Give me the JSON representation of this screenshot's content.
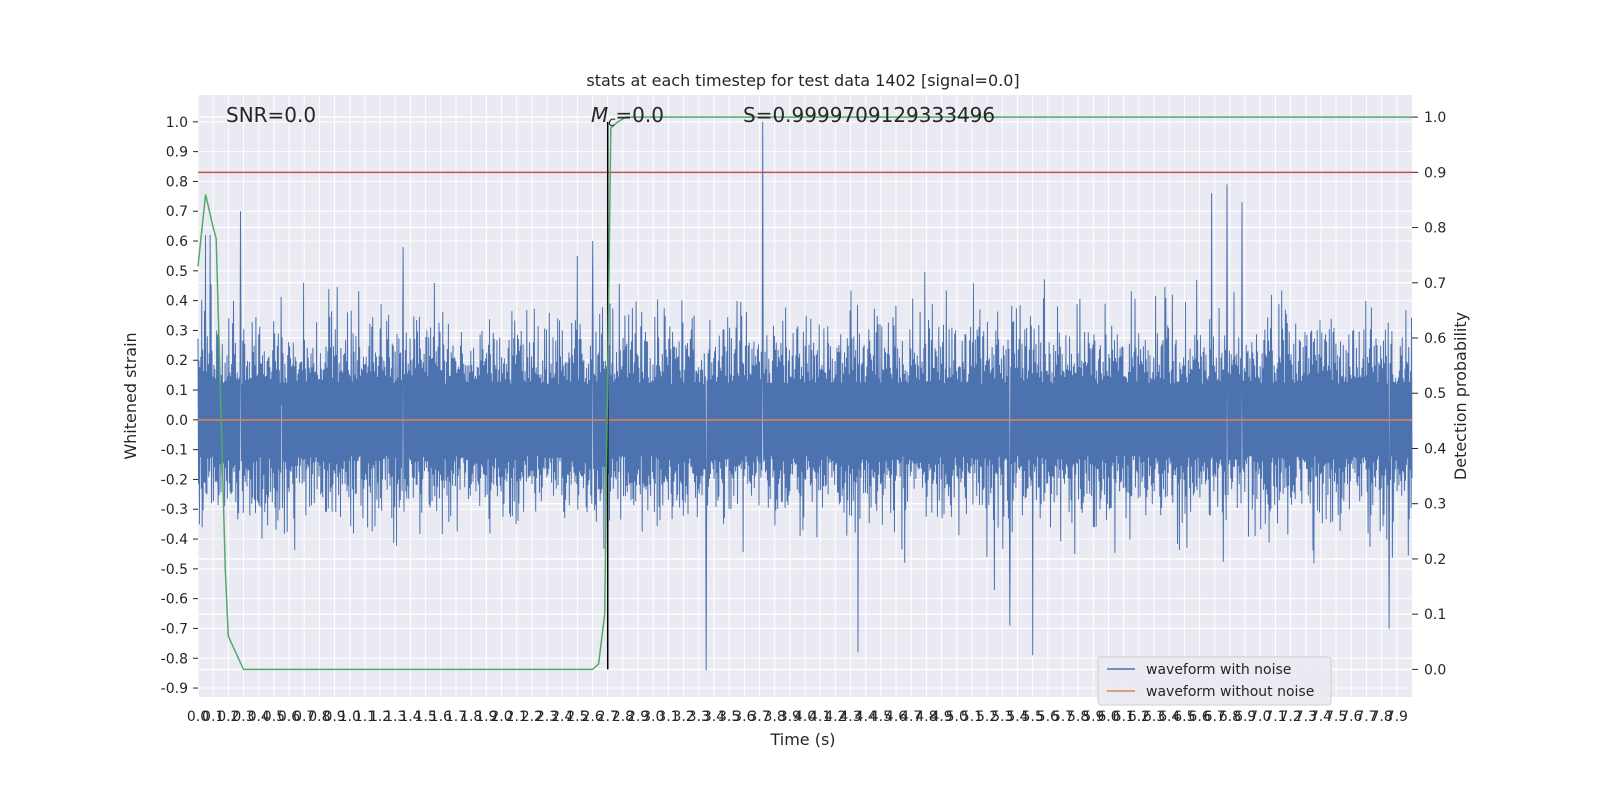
{
  "chart_data": {
    "type": "line",
    "title": "stats at each timestep for test data 1402 [signal=0.0]",
    "xlabel": "Time (s)",
    "ylabel": "Whitened strain",
    "ylabel_right": "Detection probability",
    "xlim": [
      0.0,
      8.0
    ],
    "ylim": [
      -0.93,
      1.09
    ],
    "ylim_right": [
      -0.05,
      1.04
    ],
    "x_ticks": [
      "0.0",
      "0.1",
      "0.2",
      "0.3",
      "0.4",
      "0.5",
      "0.6",
      "0.7",
      "0.8",
      "0.9",
      "1.0",
      "1.1",
      "1.2",
      "1.3",
      "1.4",
      "1.5",
      "1.6",
      "1.7",
      "1.8",
      "1.9",
      "2.0",
      "2.1",
      "2.2",
      "2.3",
      "2.4",
      "2.5",
      "2.6",
      "2.7",
      "2.8",
      "2.9",
      "3.0",
      "3.1",
      "3.2",
      "3.3",
      "3.4",
      "3.5",
      "3.6",
      "3.7",
      "3.8",
      "3.9",
      "4.0",
      "4.1",
      "4.2",
      "4.3",
      "4.4",
      "4.5",
      "4.6",
      "4.7",
      "4.8",
      "4.9",
      "5.0",
      "5.1",
      "5.2",
      "5.3",
      "5.4",
      "5.5",
      "5.6",
      "5.7",
      "5.8",
      "5.9",
      "6.0",
      "6.1",
      "6.2",
      "6.3",
      "6.4",
      "6.5",
      "6.6",
      "6.7",
      "6.8",
      "6.9",
      "7.0",
      "7.1",
      "7.2",
      "7.3",
      "7.4",
      "7.5",
      "7.6",
      "7.7",
      "7.8",
      "7.9"
    ],
    "y_ticks": [
      "-0.9",
      "-0.8",
      "-0.7",
      "-0.6",
      "-0.5",
      "-0.4",
      "-0.3",
      "-0.2",
      "-0.1",
      "0.0",
      "0.1",
      "0.2",
      "0.3",
      "0.4",
      "0.5",
      "0.6",
      "0.7",
      "0.8",
      "0.9",
      "1.0"
    ],
    "y_ticks_right": [
      "0.0",
      "0.1",
      "0.2",
      "0.3",
      "0.4",
      "0.5",
      "0.6",
      "0.7",
      "0.8",
      "0.9",
      "1.0"
    ],
    "annotations": {
      "snr": "SNR=0.0",
      "mc": "=0.0",
      "mc_symbol": "M",
      "mc_sub": "c",
      "s": "S=0.9999709129333496"
    },
    "series": [
      {
        "name": "waveform with noise",
        "color": "#4c72b0",
        "noise_sigma": 0.12,
        "spikes": [
          [
            0.05,
            0.62
          ],
          [
            0.08,
            0.62
          ],
          [
            0.28,
            0.7
          ],
          [
            0.55,
            0.05
          ],
          [
            1.35,
            0.58
          ],
          [
            2.5,
            0.55
          ],
          [
            2.6,
            0.6
          ],
          [
            3.72,
            1.0
          ],
          [
            6.68,
            0.76
          ],
          [
            6.78,
            0.79
          ],
          [
            6.88,
            0.73
          ],
          [
            3.35,
            -0.84
          ],
          [
            4.35,
            -0.78
          ],
          [
            5.5,
            -0.79
          ],
          [
            5.35,
            -0.69
          ],
          [
            7.85,
            -0.7
          ]
        ]
      },
      {
        "name": "waveform without noise",
        "color": "#dd8452",
        "x": [
          0.0,
          8.0
        ],
        "y": [
          0.0,
          0.0
        ]
      },
      {
        "color": "#55a868",
        "axis": "right",
        "x": [
          0.0,
          0.05,
          0.1,
          0.12,
          0.18,
          0.2,
          0.25,
          0.3,
          0.5,
          1.0,
          1.5,
          2.0,
          2.4,
          2.6,
          2.64,
          2.68,
          2.72,
          2.76,
          2.82,
          3.0,
          4.0,
          5.0,
          6.0,
          7.0,
          8.0
        ],
        "y": [
          0.73,
          0.86,
          0.8,
          0.78,
          0.18,
          0.06,
          0.03,
          0.0,
          0.0,
          0.0,
          0.0,
          0.0,
          0.0,
          0.0,
          0.01,
          0.1,
          0.98,
          0.99,
          1.0,
          1.0,
          1.0,
          1.0,
          1.0,
          1.0,
          1.0
        ]
      }
    ],
    "threshold_line": {
      "color": "#c44e52",
      "value_right": 0.9
    },
    "vertical_marker": {
      "x": 2.7,
      "color": "#000000"
    },
    "legend": {
      "placement": "lower-right",
      "entries": [
        {
          "label": "waveform with noise",
          "color": "#4c72b0"
        },
        {
          "label": "waveform without noise",
          "color": "#dd8452"
        }
      ]
    },
    "grid": true,
    "colors": {
      "background": "#eaeaf2",
      "grid": "#ffffff",
      "text": "#262626"
    }
  }
}
